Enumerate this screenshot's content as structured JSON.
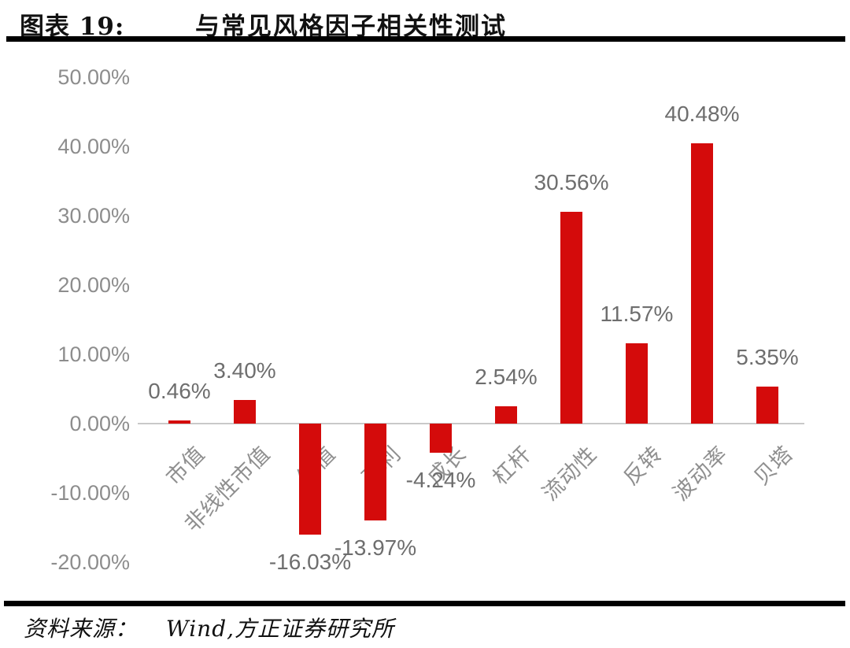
{
  "header": {
    "chart_label": "图表 19:",
    "title": "与常见风格因子相关性测试"
  },
  "footer": {
    "source_label": "资料来源：",
    "source_text": "Wind,方正证券研究所"
  },
  "chart_data": {
    "type": "bar",
    "title": "与常见风格因子相关性测试",
    "categories": [
      "市值",
      "非线性市值",
      "估值",
      "盈利",
      "成长",
      "杠杆",
      "流动性",
      "反转",
      "波动率",
      "贝塔"
    ],
    "values": [
      0.46,
      3.4,
      -16.03,
      -13.97,
      -4.24,
      2.54,
      30.56,
      11.57,
      40.48,
      5.35
    ],
    "value_labels": [
      "0.46%",
      "3.40%",
      "-16.03%",
      "-13.97%",
      "-4.24%",
      "2.54%",
      "30.56%",
      "11.57%",
      "40.48%",
      "5.35%"
    ],
    "unit": "percent",
    "xlabel": "",
    "ylabel": "",
    "ylim": [
      -20,
      50
    ],
    "grid": false,
    "legend": "none",
    "bar_color": "#d40b0b",
    "value_label_color": "#6e6e6e",
    "axis_label_color": "#8d8d8d",
    "y_axis": {
      "ticks": [
        {
          "value": 50,
          "label": "50.00%"
        },
        {
          "value": 40,
          "label": "40.00%"
        },
        {
          "value": 30,
          "label": "30.00%"
        },
        {
          "value": 20,
          "label": "20.00%"
        },
        {
          "value": 10,
          "label": "10.00%"
        },
        {
          "value": 0,
          "label": "0.00%"
        },
        {
          "value": -10,
          "label": "-10.00%"
        },
        {
          "value": -20,
          "label": "-20.00%"
        }
      ]
    }
  }
}
